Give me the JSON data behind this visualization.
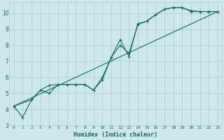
{
  "xlabel": "Humidex (Indice chaleur)",
  "bg_color": "#cce8ea",
  "grid_color": "#aacccc",
  "line_color": "#1a6b5a",
  "xlim": [
    -0.5,
    23.5
  ],
  "ylim": [
    3.0,
    10.7
  ],
  "xticks": [
    0,
    1,
    2,
    3,
    4,
    5,
    6,
    7,
    8,
    9,
    10,
    11,
    12,
    13,
    14,
    15,
    16,
    17,
    18,
    19,
    20,
    21,
    22,
    23
  ],
  "yticks": [
    3,
    4,
    5,
    6,
    7,
    8,
    9,
    10
  ],
  "line1_x": [
    0,
    1,
    2,
    3,
    4,
    5,
    6,
    7,
    8,
    9,
    10,
    11,
    12,
    13,
    14,
    15,
    16,
    17,
    18,
    19,
    20,
    21,
    22,
    23
  ],
  "line1_y": [
    4.2,
    3.5,
    4.6,
    5.2,
    5.0,
    5.55,
    5.55,
    5.55,
    5.55,
    5.2,
    5.85,
    7.25,
    8.35,
    7.3,
    9.35,
    9.5,
    9.9,
    10.25,
    10.35,
    10.35,
    10.1,
    10.1,
    10.1,
    10.1
  ],
  "line2_x": [
    0,
    2,
    3,
    4,
    5,
    6,
    7,
    8,
    9,
    10,
    11,
    12,
    13,
    14,
    15,
    16,
    17,
    18,
    19,
    20,
    21,
    22,
    23
  ],
  "line2_y": [
    4.2,
    4.6,
    5.2,
    5.5,
    5.55,
    5.55,
    5.55,
    5.55,
    5.2,
    6.0,
    7.25,
    8.0,
    7.5,
    9.3,
    9.5,
    9.9,
    10.25,
    10.35,
    10.35,
    10.15,
    10.1,
    10.1,
    10.1
  ],
  "line3_x": [
    0,
    23
  ],
  "line3_y": [
    4.2,
    10.1
  ]
}
